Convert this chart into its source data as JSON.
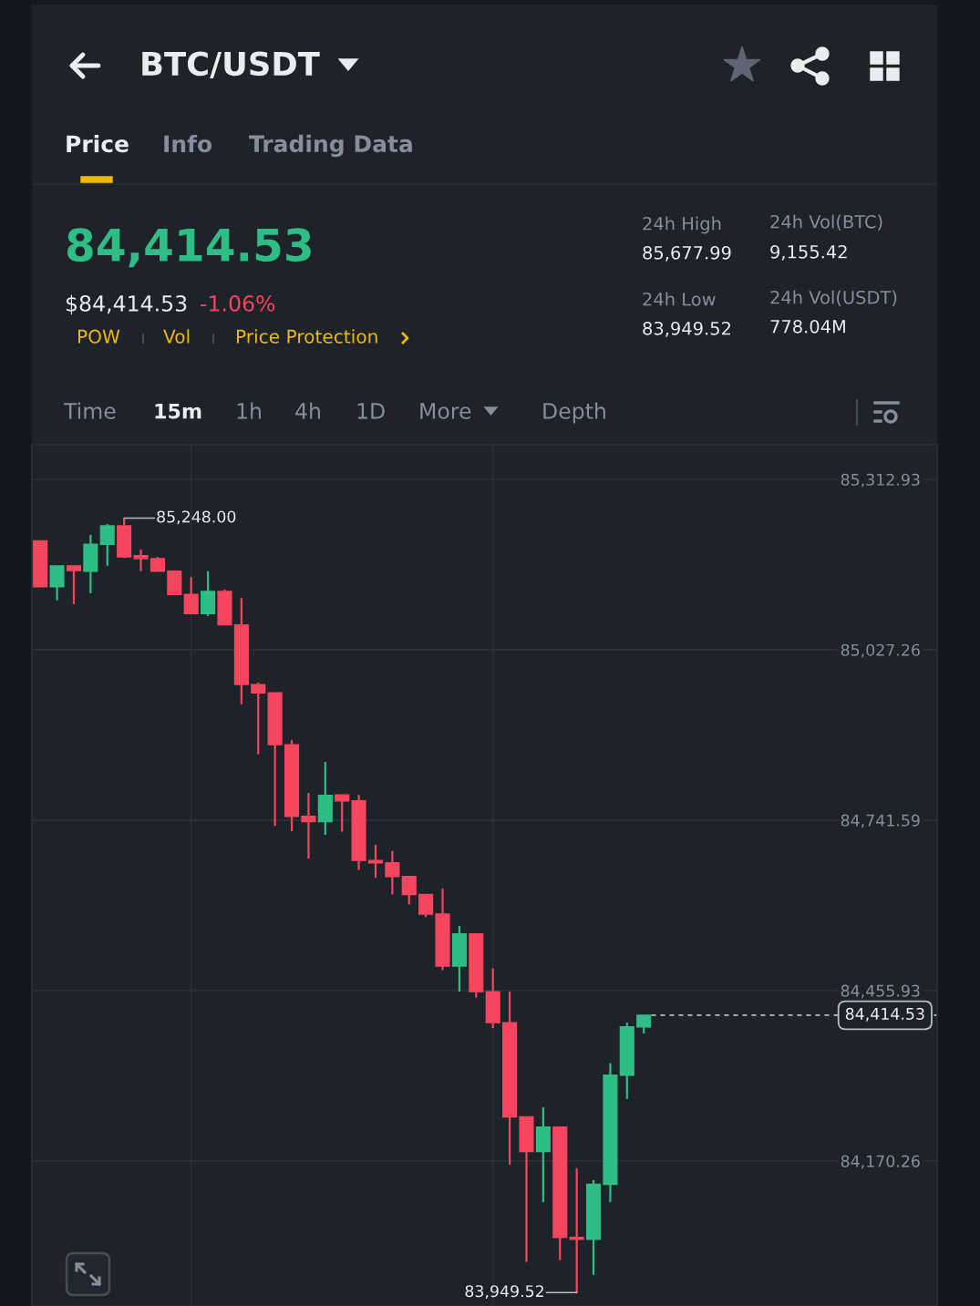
{
  "chart_data": {
    "type": "candlestick",
    "title": "BTC/USDT",
    "subtitle": "84,414.53",
    "annotations": [
      "Price",
      "Info",
      "Trading Data",
      "$84,414.53",
      "-1.06%",
      "POW",
      "Vol",
      "Price Protection",
      "24h High",
      "85,677.99",
      "24h Vol(BTC)",
      "9,155.42",
      "24h Low",
      "83,949.52",
      "24h Vol(USDT)",
      "778.04M",
      "Time",
      "15m",
      "1h",
      "4h",
      "1D",
      "More",
      "Depth",
      "85,248.00",
      "83,949.52"
    ],
    "categories": [
      null,
      null,
      null,
      null,
      null,
      null,
      null,
      null,
      null,
      null,
      null,
      null,
      null,
      null,
      null,
      null,
      null,
      null,
      null,
      null,
      null,
      null,
      null,
      null,
      null,
      null,
      null,
      null,
      null,
      null,
      null,
      null,
      null,
      null,
      null,
      null,
      null,
      null,
      null,
      null,
      null,
      null,
      null,
      null,
      null,
      null,
      null,
      null,
      null,
      null,
      null,
      null,
      null,
      null
    ],
    "ohlc": [
      [
        85210,
        85210,
        85133,
        85133
      ],
      [
        85133,
        85168,
        85110,
        85168
      ],
      [
        85168,
        85168,
        85104,
        85160
      ],
      [
        85159,
        85220,
        85122,
        85204
      ],
      [
        85204,
        85238,
        85168,
        85235
      ],
      [
        85235,
        85248.0,
        85181,
        85183
      ],
      [
        85185,
        85195,
        85159,
        85180
      ],
      [
        85180,
        85183,
        85159,
        85159
      ],
      [
        85159,
        85159,
        85120,
        85120
      ],
      [
        85120,
        85149,
        85088,
        85088
      ],
      [
        85088,
        85159,
        85084,
        85125
      ],
      [
        85125,
        85128,
        85069,
        85069
      ],
      [
        85069,
        85114,
        84936,
        84969
      ],
      [
        84969,
        84972,
        84852,
        84955
      ],
      [
        84955,
        84955,
        84732,
        84868
      ],
      [
        84868,
        84876,
        84723,
        84748
      ],
      [
        84748,
        84787,
        84677,
        84739
      ],
      [
        84739,
        84839,
        84717,
        84783
      ],
      [
        84784,
        84784,
        84722,
        84774
      ],
      [
        84774,
        84784,
        84658,
        84674
      ],
      [
        84674,
        84700,
        84645,
        84670
      ],
      [
        84670,
        84690,
        84617,
        84647
      ],
      [
        84647,
        84647,
        84600,
        84617
      ],
      [
        84617,
        84617,
        84579,
        84584
      ],
      [
        84584,
        84627,
        84490,
        84497
      ],
      [
        84497,
        84564,
        84454,
        84551
      ],
      [
        84551,
        84551,
        84444,
        84454
      ],
      [
        84454,
        84493,
        84393,
        84402
      ],
      [
        84402,
        84454,
        84164,
        84244
      ],
      [
        84244,
        84244,
        84001,
        84186
      ],
      [
        84186,
        84260,
        84101,
        84227
      ],
      [
        84227,
        84227,
        84004,
        84042
      ],
      [
        84042,
        84158,
        83949.52,
        84039
      ],
      [
        84039,
        84138,
        83979,
        84131
      ],
      [
        84131,
        84334,
        84101,
        84314
      ],
      [
        84314,
        84402,
        84274,
        84395
      ],
      [
        84395,
        84414.53,
        84384,
        84414.53
      ],
      null,
      null,
      null,
      null,
      null,
      null,
      null,
      null,
      null,
      null,
      null,
      null,
      null,
      null,
      null,
      null,
      null
    ],
    "colors": [
      "#f6465d",
      "#2ebd85",
      "#f6465d",
      "#2ebd85",
      "#2ebd85",
      "#f6465d",
      "#f6465d",
      "#f6465d",
      "#f6465d",
      "#f6465d",
      "#2ebd85",
      "#f6465d",
      "#f6465d",
      "#f6465d",
      "#f6465d",
      "#f6465d",
      "#f6465d",
      "#2ebd85",
      "#f6465d",
      "#f6465d",
      "#f6465d",
      "#f6465d",
      "#f6465d",
      "#f6465d",
      "#f6465d",
      "#2ebd85",
      "#f6465d",
      "#f6465d",
      "#f6465d",
      "#f6465d",
      "#2ebd85",
      "#f6465d",
      "#f6465d",
      "#2ebd85",
      "#2ebd85",
      "#2ebd85",
      "#2ebd85",
      null,
      null,
      null,
      null,
      null,
      null,
      null,
      null,
      null,
      null,
      null,
      null,
      null,
      null,
      null,
      null,
      null
    ],
    "ylim": [
      83927,
      85371
    ],
    "yticks": [
      {
        "value": 84170.26,
        "label": "84,170.26"
      },
      {
        "value": 84455.93,
        "label": "84,455.93"
      },
      {
        "value": 84741.59,
        "label": "84,741.59"
      },
      {
        "value": 85027.26,
        "label": "85,027.26"
      },
      {
        "value": 85312.93,
        "label": "85,312.93"
      }
    ],
    "grid": true,
    "ref_lines": [
      {
        "axis": "y",
        "value": 84414.53,
        "label": "84,414.53",
        "color": "#b7bdc6",
        "line_style": "dashed"
      }
    ]
  }
}
